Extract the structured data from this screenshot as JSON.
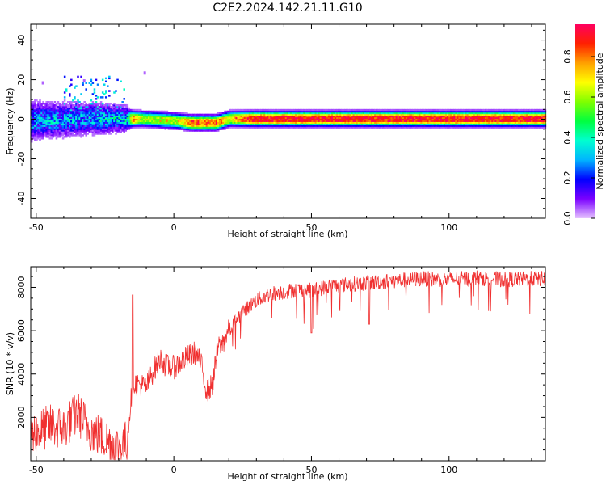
{
  "title": "C2E2.2024.142.21.11.G10",
  "chart_data": [
    {
      "type": "heatmap",
      "xlabel": "Height of straight line (km)",
      "ylabel": "Frequency (Hz)",
      "xlim": [
        -52,
        135
      ],
      "ylim": [
        -50,
        48
      ],
      "xticks": [
        -50,
        0,
        50,
        100
      ],
      "yticks": [
        -40,
        -20,
        0,
        20,
        40
      ],
      "colorbar": {
        "label": "Normalized spectral amplitude",
        "range": [
          0,
          0.96
        ],
        "ticks": [
          "0.0",
          "0.2",
          "0.4",
          "0.6",
          "0.8"
        ],
        "colormap": [
          "#e6c3ff",
          "#7a00ff",
          "#0000ff",
          "#00b4ff",
          "#00ffd0",
          "#00ff40",
          "#80ff00",
          "#ffff00",
          "#ffa000",
          "#ff2000",
          "#ff0060"
        ]
      },
      "band_profile": [
        {
          "x": -52,
          "center": -1,
          "halfwidth": 6,
          "amplitude": 0.3
        },
        {
          "x": -30,
          "center": 0,
          "halfwidth": 5,
          "amplitude": 0.3
        },
        {
          "x": -17,
          "center": 0,
          "halfwidth": 4,
          "amplitude": 0.35
        },
        {
          "x": -15,
          "center": 0,
          "halfwidth": 3,
          "amplitude": 0.8
        },
        {
          "x": -12,
          "center": 0,
          "halfwidth": 3,
          "amplitude": 0.6
        },
        {
          "x": 0,
          "center": -1,
          "halfwidth": 3,
          "amplitude": 0.6
        },
        {
          "x": 6,
          "center": -2,
          "halfwidth": 3,
          "amplitude": 0.8
        },
        {
          "x": 15,
          "center": -2,
          "halfwidth": 3,
          "amplitude": 0.8
        },
        {
          "x": 20,
          "center": 0,
          "halfwidth": 3,
          "amplitude": 0.65
        },
        {
          "x": 28,
          "center": 0,
          "halfwidth": 3,
          "amplitude": 0.9
        },
        {
          "x": 135,
          "center": 0,
          "halfwidth": 3,
          "amplitude": 0.9
        }
      ]
    },
    {
      "type": "line",
      "xlabel": "Height of straight line (km)",
      "ylabel": "SNR (10 * v/v)",
      "xlim": [
        -52,
        135
      ],
      "ylim": [
        0,
        8950
      ],
      "xticks": [
        -50,
        0,
        50,
        100
      ],
      "yticks": [
        2000,
        4000,
        6000,
        8000
      ],
      "color": "#f03030",
      "series": [
        {
          "x": [
            -52,
            -45,
            -40,
            -35,
            -30,
            -25,
            -20,
            -17,
            -15,
            -12,
            -10,
            -8,
            -5,
            -3,
            0,
            3,
            5,
            8,
            10,
            12,
            14,
            16,
            18,
            20,
            25,
            30,
            35,
            40,
            45,
            50,
            55,
            60,
            70,
            80,
            90,
            100,
            110,
            120,
            130,
            135
          ],
          "y": [
            1200,
            1600,
            1500,
            2200,
            1400,
            1000,
            600,
            900,
            3600,
            3500,
            3400,
            4000,
            4700,
            4400,
            4300,
            4600,
            4800,
            5000,
            4400,
            3200,
            3500,
            5200,
            5500,
            6000,
            6900,
            7400,
            7700,
            7800,
            7900,
            7850,
            8000,
            8100,
            8200,
            8300,
            8400,
            8350,
            8450,
            8350,
            8400,
            8400
          ]
        }
      ]
    }
  ]
}
